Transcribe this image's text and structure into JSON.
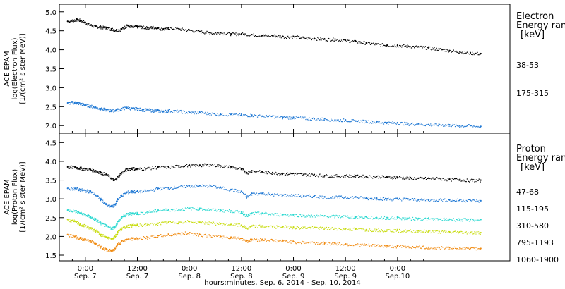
{
  "chart_data": [
    {
      "type": "scatter",
      "panel": "electron",
      "ylabel_lines": [
        "ACE EPAM",
        "log(Electron Flux)",
        "[1/(cm² s ster MeV)]"
      ],
      "ylim": [
        1.8,
        5.2
      ],
      "yticks": [
        "2.0",
        "2.5",
        "3.0",
        "3.5",
        "4.0",
        "4.5",
        "5.0"
      ],
      "legend_title": [
        "Electron",
        "Energy ranges",
        "[keV]"
      ],
      "series": [
        {
          "name": "38-53",
          "color": "#000000",
          "x": [
            -0.17,
            -0.12,
            -0.08,
            -0.04,
            0.0,
            0.05,
            0.1,
            0.15,
            0.2,
            0.25,
            0.3,
            0.35,
            0.4,
            0.45,
            0.5,
            0.55,
            0.6,
            0.65,
            0.7,
            0.75,
            0.8,
            0.9,
            1.0,
            1.1,
            1.2,
            1.3,
            1.4,
            1.5,
            1.6,
            1.7,
            1.8,
            1.9,
            2.0,
            2.1,
            2.2,
            2.3,
            2.4,
            2.5,
            2.6,
            2.7,
            2.8,
            2.9,
            3.0,
            3.1,
            3.2,
            3.3,
            3.4,
            3.5,
            3.6,
            3.7,
            3.8
          ],
          "y": [
            4.75,
            4.78,
            4.8,
            4.77,
            4.72,
            4.65,
            4.62,
            4.6,
            4.58,
            4.55,
            4.52,
            4.55,
            4.65,
            4.6,
            4.62,
            4.6,
            4.58,
            4.6,
            4.57,
            4.55,
            4.58,
            4.55,
            4.52,
            4.48,
            4.45,
            4.45,
            4.42,
            4.42,
            4.4,
            4.38,
            4.38,
            4.35,
            4.35,
            4.32,
            4.3,
            4.28,
            4.28,
            4.25,
            4.22,
            4.18,
            4.15,
            4.12,
            4.12,
            4.1,
            4.08,
            4.05,
            4.02,
            3.98,
            3.95,
            3.92,
            3.9
          ]
        },
        {
          "name": "175-315",
          "color": "#1f78d4",
          "x": [
            -0.17,
            -0.12,
            -0.08,
            -0.04,
            0.0,
            0.05,
            0.1,
            0.15,
            0.2,
            0.25,
            0.3,
            0.35,
            0.4,
            0.45,
            0.5,
            0.55,
            0.6,
            0.65,
            0.7,
            0.75,
            0.8,
            0.9,
            1.0,
            1.1,
            1.2,
            1.3,
            1.4,
            1.5,
            1.6,
            1.7,
            1.8,
            1.9,
            2.0,
            2.1,
            2.2,
            2.3,
            2.4,
            2.5,
            2.6,
            2.7,
            2.8,
            2.9,
            3.0,
            3.1,
            3.2,
            3.3,
            3.4,
            3.5,
            3.6,
            3.7,
            3.8
          ],
          "y": [
            2.6,
            2.62,
            2.6,
            2.58,
            2.55,
            2.52,
            2.48,
            2.45,
            2.42,
            2.4,
            2.42,
            2.45,
            2.48,
            2.45,
            2.45,
            2.42,
            2.42,
            2.4,
            2.4,
            2.38,
            2.4,
            2.38,
            2.35,
            2.35,
            2.32,
            2.3,
            2.3,
            2.28,
            2.28,
            2.25,
            2.25,
            2.22,
            2.22,
            2.2,
            2.18,
            2.18,
            2.15,
            2.15,
            2.12,
            2.12,
            2.1,
            2.08,
            2.08,
            2.05,
            2.05,
            2.03,
            2.03,
            2.02,
            2.0,
            2.0,
            1.98
          ]
        }
      ]
    },
    {
      "type": "scatter",
      "panel": "proton",
      "ylabel_lines": [
        "ACE EPAM",
        "log(Proton Flux)",
        "[1/(cm² s ster MeV)]"
      ],
      "ylim": [
        1.35,
        4.75
      ],
      "yticks": [
        "1.5",
        "2.0",
        "2.5",
        "3.0",
        "3.5",
        "4.0",
        "4.5"
      ],
      "legend_title": [
        "Proton",
        "Energy ranges",
        "[keV]"
      ],
      "series": [
        {
          "name": "47-68",
          "color": "#000000",
          "x": [
            -0.17,
            -0.1,
            -0.05,
            0.0,
            0.05,
            0.1,
            0.15,
            0.2,
            0.25,
            0.28,
            0.31,
            0.35,
            0.4,
            0.45,
            0.5,
            0.6,
            0.7,
            0.8,
            0.9,
            1.0,
            1.1,
            1.2,
            1.3,
            1.4,
            1.5,
            1.55,
            1.6,
            1.7,
            1.8,
            1.9,
            2.0,
            2.1,
            2.2,
            2.3,
            2.4,
            2.5,
            2.6,
            2.7,
            2.8,
            2.9,
            3.0,
            3.1,
            3.2,
            3.3,
            3.4,
            3.5,
            3.6,
            3.7,
            3.8
          ],
          "y": [
            3.85,
            3.85,
            3.82,
            3.8,
            3.78,
            3.75,
            3.7,
            3.65,
            3.55,
            3.5,
            3.6,
            3.7,
            3.8,
            3.82,
            3.8,
            3.82,
            3.85,
            3.85,
            3.88,
            3.9,
            3.9,
            3.92,
            3.88,
            3.85,
            3.8,
            3.7,
            3.75,
            3.72,
            3.7,
            3.68,
            3.68,
            3.65,
            3.65,
            3.62,
            3.62,
            3.62,
            3.62,
            3.6,
            3.6,
            3.58,
            3.58,
            3.56,
            3.55,
            3.55,
            3.55,
            3.52,
            3.52,
            3.5,
            3.5
          ]
        },
        {
          "name": "115-195",
          "color": "#1f78d4",
          "x": [
            -0.17,
            -0.1,
            -0.05,
            0.0,
            0.05,
            0.1,
            0.15,
            0.2,
            0.25,
            0.28,
            0.31,
            0.35,
            0.4,
            0.45,
            0.5,
            0.6,
            0.7,
            0.8,
            0.9,
            1.0,
            1.1,
            1.2,
            1.3,
            1.4,
            1.5,
            1.55,
            1.6,
            1.7,
            1.8,
            1.9,
            2.0,
            2.1,
            2.2,
            2.3,
            2.4,
            2.5,
            2.6,
            2.7,
            2.8,
            2.9,
            3.0,
            3.1,
            3.2,
            3.3,
            3.4,
            3.5,
            3.6,
            3.7,
            3.8
          ],
          "y": [
            3.28,
            3.28,
            3.25,
            3.22,
            3.2,
            3.1,
            2.98,
            2.85,
            2.8,
            2.85,
            3.0,
            3.1,
            3.18,
            3.2,
            3.2,
            3.22,
            3.28,
            3.3,
            3.32,
            3.35,
            3.35,
            3.35,
            3.3,
            3.25,
            3.2,
            3.05,
            3.15,
            3.15,
            3.12,
            3.1,
            3.1,
            3.08,
            3.08,
            3.05,
            3.05,
            3.05,
            3.05,
            3.02,
            3.02,
            3.0,
            3.0,
            3.0,
            2.98,
            2.98,
            2.98,
            2.97,
            2.97,
            2.96,
            2.95
          ]
        },
        {
          "name": "310-580",
          "color": "#2ad8d0",
          "x": [
            -0.17,
            -0.1,
            -0.05,
            0.0,
            0.05,
            0.1,
            0.15,
            0.2,
            0.25,
            0.28,
            0.31,
            0.35,
            0.4,
            0.45,
            0.5,
            0.6,
            0.7,
            0.8,
            0.9,
            1.0,
            1.1,
            1.2,
            1.3,
            1.4,
            1.5,
            1.55,
            1.6,
            1.7,
            1.8,
            1.9,
            2.0,
            2.1,
            2.2,
            2.3,
            2.4,
            2.5,
            2.6,
            2.7,
            2.8,
            2.9,
            3.0,
            3.1,
            3.2,
            3.3,
            3.4,
            3.5,
            3.6,
            3.7,
            3.8
          ],
          "y": [
            2.7,
            2.68,
            2.62,
            2.58,
            2.52,
            2.45,
            2.35,
            2.28,
            2.22,
            2.25,
            2.4,
            2.52,
            2.6,
            2.62,
            2.62,
            2.65,
            2.7,
            2.72,
            2.72,
            2.75,
            2.75,
            2.72,
            2.7,
            2.68,
            2.65,
            2.55,
            2.62,
            2.62,
            2.6,
            2.58,
            2.58,
            2.56,
            2.55,
            2.55,
            2.54,
            2.54,
            2.52,
            2.52,
            2.5,
            2.5,
            2.5,
            2.48,
            2.48,
            2.47,
            2.46,
            2.46,
            2.45,
            2.45,
            2.45
          ]
        },
        {
          "name": "795-1193",
          "color": "#c8dc10",
          "x": [
            -0.17,
            -0.1,
            -0.05,
            0.0,
            0.05,
            0.1,
            0.15,
            0.2,
            0.25,
            0.28,
            0.31,
            0.35,
            0.4,
            0.45,
            0.5,
            0.6,
            0.7,
            0.8,
            0.9,
            1.0,
            1.1,
            1.2,
            1.3,
            1.4,
            1.5,
            1.55,
            1.6,
            1.7,
            1.8,
            1.9,
            2.0,
            2.1,
            2.2,
            2.3,
            2.4,
            2.5,
            2.6,
            2.7,
            2.8,
            2.9,
            3.0,
            3.1,
            3.2,
            3.3,
            3.4,
            3.5,
            3.6,
            3.7,
            3.8
          ],
          "y": [
            2.45,
            2.4,
            2.32,
            2.28,
            2.22,
            2.15,
            2.05,
            1.98,
            1.95,
            2.0,
            2.12,
            2.22,
            2.28,
            2.3,
            2.3,
            2.32,
            2.35,
            2.38,
            2.38,
            2.4,
            2.38,
            2.36,
            2.34,
            2.32,
            2.3,
            2.22,
            2.28,
            2.28,
            2.26,
            2.26,
            2.25,
            2.24,
            2.24,
            2.22,
            2.22,
            2.2,
            2.2,
            2.18,
            2.18,
            2.17,
            2.16,
            2.15,
            2.15,
            2.14,
            2.13,
            2.12,
            2.12,
            2.11,
            2.1
          ]
        },
        {
          "name": "1060-1900",
          "color": "#f08a10",
          "x": [
            -0.17,
            -0.1,
            -0.05,
            0.0,
            0.05,
            0.1,
            0.15,
            0.2,
            0.25,
            0.28,
            0.31,
            0.35,
            0.4,
            0.45,
            0.5,
            0.6,
            0.7,
            0.8,
            0.9,
            1.0,
            1.1,
            1.2,
            1.3,
            1.4,
            1.5,
            1.55,
            1.6,
            1.7,
            1.8,
            1.9,
            2.0,
            2.1,
            2.2,
            2.3,
            2.4,
            2.5,
            2.6,
            2.7,
            2.8,
            2.9,
            3.0,
            3.1,
            3.2,
            3.3,
            3.4,
            3.5,
            3.6,
            3.7,
            3.8
          ],
          "y": [
            2.05,
            2.0,
            1.95,
            1.92,
            1.88,
            1.8,
            1.72,
            1.65,
            1.62,
            1.68,
            1.8,
            1.88,
            1.92,
            1.95,
            1.95,
            1.98,
            2.02,
            2.05,
            2.08,
            2.1,
            2.05,
            2.02,
            2.0,
            1.98,
            1.95,
            1.88,
            1.92,
            1.92,
            1.9,
            1.88,
            1.86,
            1.85,
            1.84,
            1.82,
            1.82,
            1.8,
            1.78,
            1.78,
            1.76,
            1.75,
            1.74,
            1.73,
            1.72,
            1.71,
            1.7,
            1.7,
            1.69,
            1.68,
            1.68
          ]
        }
      ]
    }
  ],
  "x_axis": {
    "xlim": [
      -0.25,
      4.08
    ],
    "ticks": [
      {
        "x": 0.0,
        "time": "0:00",
        "date": "Sep. 7"
      },
      {
        "x": 0.5,
        "time": "12:00",
        "date": "Sep. 7"
      },
      {
        "x": 1.0,
        "time": "0:00",
        "date": "Sep. 8"
      },
      {
        "x": 1.5,
        "time": "12:00",
        "date": "Sep. 8"
      },
      {
        "x": 2.0,
        "time": "0:00",
        "date": "Sep. 9"
      },
      {
        "x": 2.5,
        "time": "12:00",
        "date": "Sep. 9"
      },
      {
        "x": 3.0,
        "time": "0:00",
        "date": "Sep.10"
      }
    ],
    "xlabel": "hours:minutes, Sep.  6, 2014 - Sep. 10, 2014"
  }
}
